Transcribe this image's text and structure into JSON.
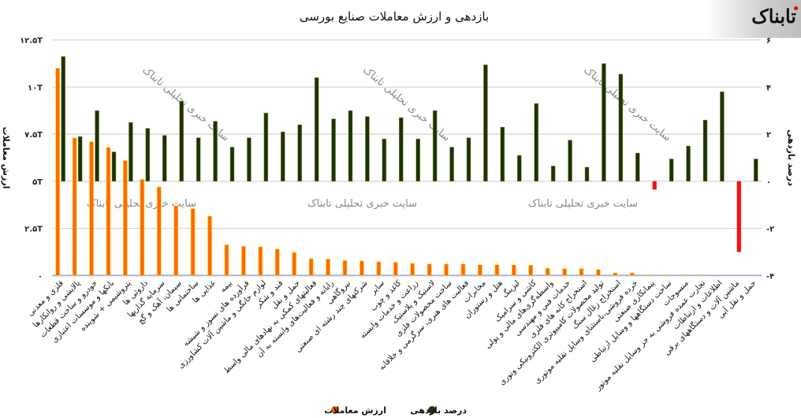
{
  "title": "بازدهی و ارزش معاملات صنایع بورسی",
  "logo": "تابناک",
  "watermark": "سایت خبری تحلیلی تابناک",
  "chart_data": {
    "type": "bar",
    "title": "بازدهی و ارزش معاملات صنایع بورسی",
    "left_axis": {
      "label": "ارزش معاملات",
      "range": [
        0,
        12.5
      ],
      "unit": "T",
      "ticks": [
        "۰",
        "۲.۵T",
        "۵T",
        "۷.۵T",
        "۱۰T",
        "۱۲.۵T"
      ],
      "tick_values": [
        0,
        2.5,
        5,
        7.5,
        10,
        12.5
      ]
    },
    "right_axis": {
      "label": "درصد بازدهی",
      "range": [
        -4,
        6
      ],
      "ticks": [
        "-۴",
        "-۲",
        "۰",
        "۲",
        "۴",
        "۶"
      ],
      "tick_values": [
        -4,
        -2,
        0,
        2,
        4,
        6
      ]
    },
    "grid": true,
    "legend_placement": "bottom",
    "colors": {
      "value": "#ff6a00",
      "return_positive": "#1c3208",
      "return_negative": "#ee1111"
    },
    "categories": [
      "فلزی و معدنی",
      "پالایشی و روانکارها",
      "خودرو و ساخت قطعات",
      "بانکها و موسسات اعتباری",
      "پتروشیمی + شوینده",
      "داروئی ها",
      "سرمایه گذاریها",
      "سیمان، آهک و گچ",
      "ساختمانی ها",
      "غذایی ها",
      "بیمه",
      "فرآورده های نسوز و شیشه",
      "لوازم خانگی و ماشین آلات کشاورزی",
      "قند و شکر",
      "حمل و نقل",
      "فعالیتهای کمکی به نهادهای مالی واسط",
      "رایانه و فعالیت‌های وابسته به آن",
      "نیروگاهی",
      "شرکتهای چند رشته ای صنعتی",
      "سایر",
      "کاغذ و چوب",
      "زراعت و خدمات وابسته",
      "لاستیک و پلاستیک",
      "ساخت محصولات فلزی",
      "فعالیت های هنری، سرگرمی و خلاقانه",
      "مخابرات",
      "هتل و رستوران",
      "لیزینگ",
      "کاشی و سرامیک",
      "واسطه‌گری‌های مالی و پولی",
      "خدمات فنی و مهندسی",
      "استخراج کانه های فلزی",
      "تولید محصولات کامپیوتری الکترونیکی ونوری",
      "استخراج زغال سنگ",
      "خرده فروشی،باستثنای وسایل نقلیه موتوری",
      "پیمانکاری صنعتی",
      "ساخت دستگاهها و وسایل ارتباطی",
      "منسوجات",
      "تجارت عمده فروشی به جز وسایل نقلیه موتور",
      "اطلاعات و ارتباطات",
      "ماشین آلات و دستگاههای برقی",
      "حمل و نقل آبی"
    ],
    "series": [
      {
        "name": "ارزش معاملات",
        "axis": "left",
        "values": [
          11.0,
          7.3,
          7.1,
          6.8,
          6.1,
          5.1,
          4.7,
          3.7,
          3.55,
          3.15,
          1.63,
          1.55,
          1.52,
          1.4,
          1.22,
          0.89,
          0.87,
          0.8,
          0.77,
          0.73,
          0.7,
          0.64,
          0.61,
          0.61,
          0.61,
          0.57,
          0.57,
          0.56,
          0.55,
          0.39,
          0.36,
          0.36,
          0.31,
          0.14,
          0.14,
          0.04,
          0.04,
          0.04,
          0.04,
          0,
          0,
          0
        ]
      },
      {
        "name": "درصد بازدهی",
        "axis": "right",
        "values": [
          5.3,
          1.9,
          3.0,
          1.25,
          2.5,
          2.25,
          1.95,
          3.4,
          1.85,
          2.55,
          1.45,
          1.85,
          2.9,
          2.1,
          2.4,
          4.4,
          2.65,
          3.0,
          2.75,
          1.8,
          2.7,
          1.8,
          3.0,
          1.45,
          1.85,
          4.95,
          2.3,
          1.1,
          3.3,
          0.65,
          1.75,
          0.6,
          5.0,
          4.55,
          1.2,
          -0.35,
          0.95,
          1.5,
          2.6,
          3.8,
          -3.0,
          0.95
        ]
      }
    ]
  }
}
